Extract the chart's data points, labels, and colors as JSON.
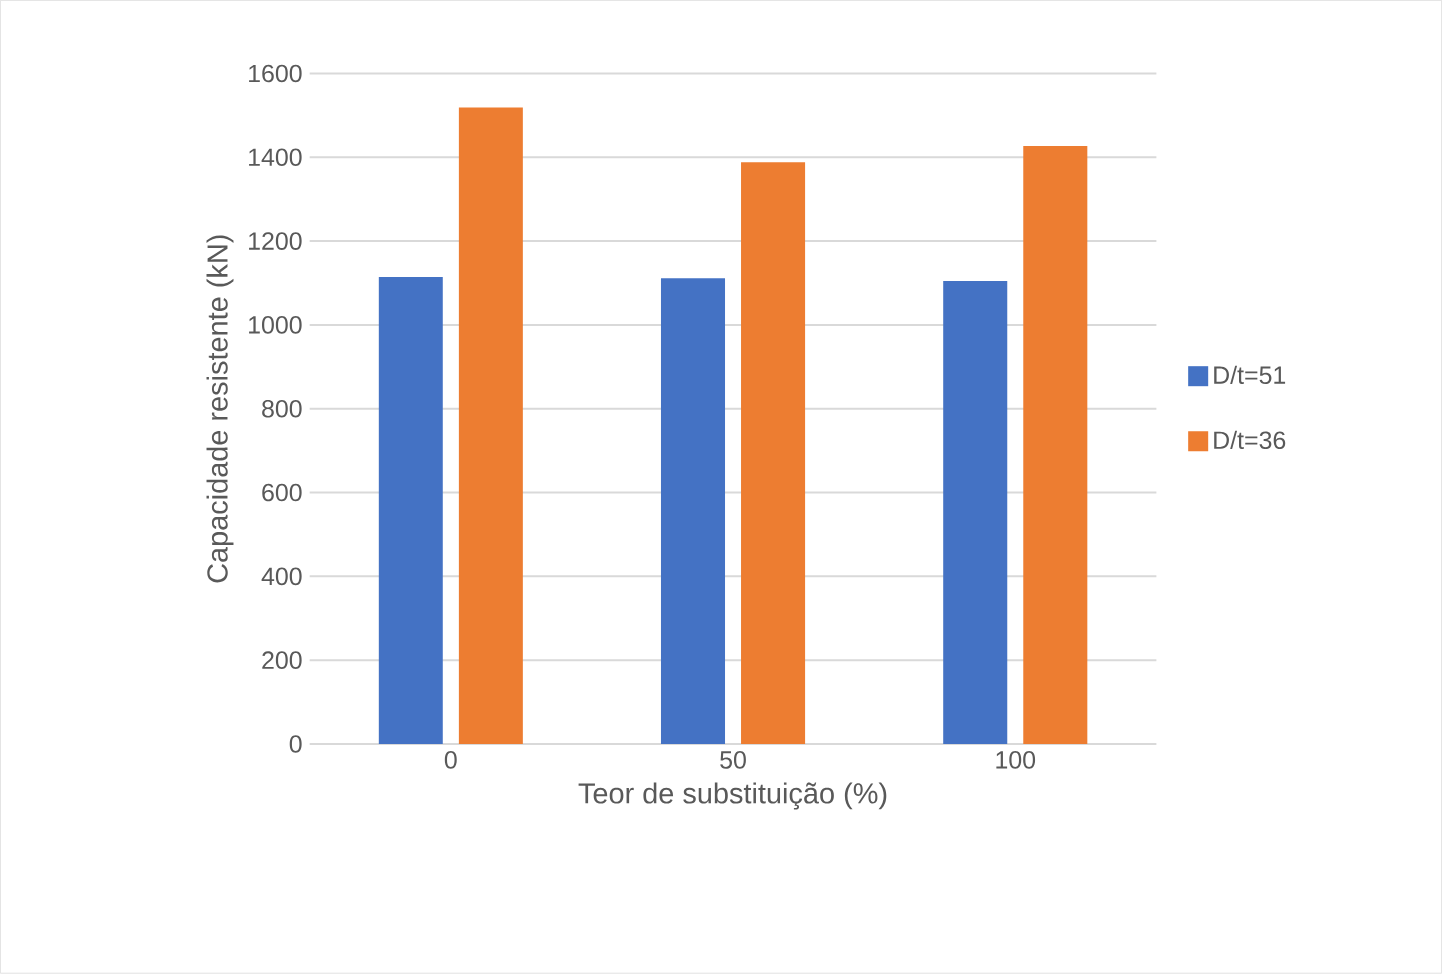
{
  "chart_data": {
    "type": "bar",
    "xlabel": "Teor de substituição (%)",
    "ylabel": "Capacidade resistente (kN)",
    "categories": [
      "0",
      "50",
      "100"
    ],
    "series": [
      {
        "name": "D/t=51",
        "color": "#4472c4",
        "values": [
          1114,
          1111,
          1105
        ]
      },
      {
        "name": "D/t=36",
        "color": "#ed7d31",
        "values": [
          1519,
          1388,
          1427
        ]
      }
    ],
    "ylim": [
      0,
      1600
    ],
    "yticks": [
      0,
      200,
      400,
      600,
      800,
      1000,
      1200,
      1400,
      1600
    ],
    "grid": "y",
    "legend": "right"
  }
}
